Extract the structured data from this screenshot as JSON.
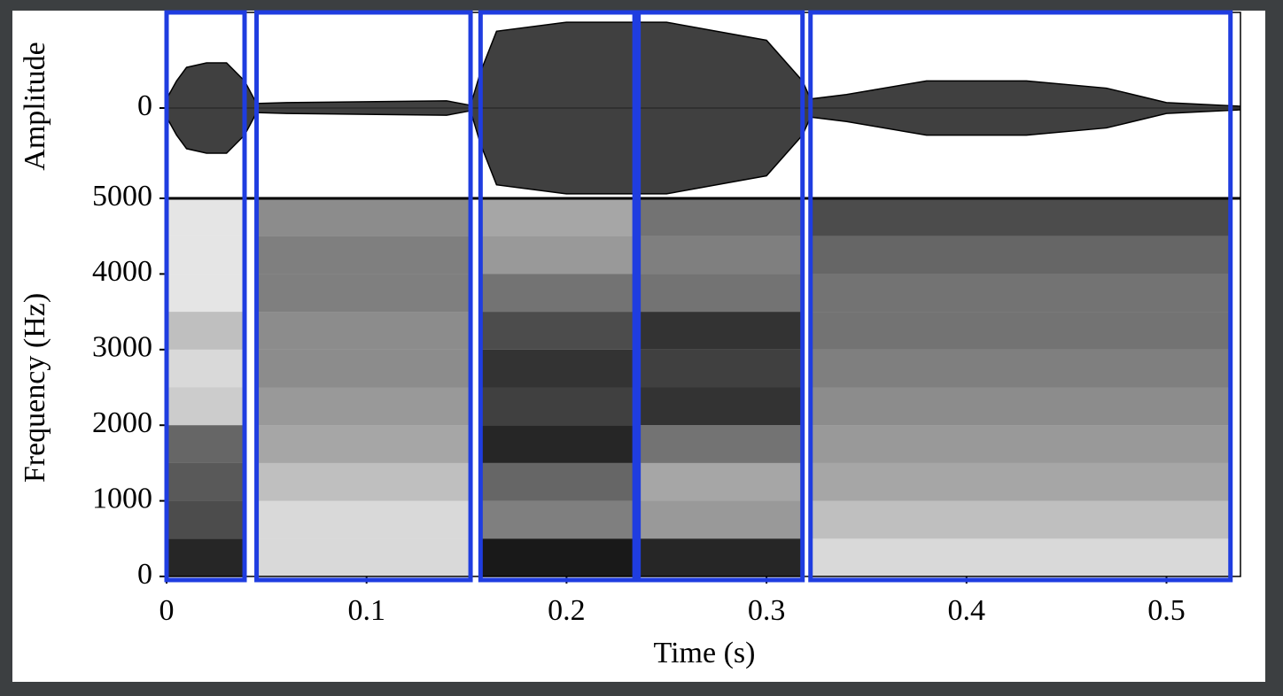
{
  "chart_data": [
    {
      "type": "envelope",
      "ylabel": "Amplitude",
      "color": "#000000",
      "xlim": [
        0,
        0.537
      ],
      "ylim": [
        -1,
        1
      ],
      "yticks": [
        0
      ],
      "x": [
        0,
        0.005,
        0.01,
        0.02,
        0.03,
        0.039,
        0.045,
        0.06,
        0.1,
        0.14,
        0.152,
        0.157,
        0.165,
        0.2,
        0.25,
        0.3,
        0.31,
        0.318,
        0.322,
        0.34,
        0.38,
        0.43,
        0.47,
        0.5,
        0.537
      ],
      "values": [
        0.1,
        0.3,
        0.45,
        0.5,
        0.5,
        0.3,
        0.05,
        0.06,
        0.07,
        0.08,
        0.03,
        0.4,
        0.85,
        0.95,
        0.95,
        0.75,
        0.5,
        0.3,
        0.1,
        0.15,
        0.3,
        0.3,
        0.22,
        0.06,
        0.02
      ]
    },
    {
      "type": "heatmap",
      "ylabel": "Frequency (Hz)",
      "xlabel": "Time (s)",
      "color": "#000000",
      "segment_color": "#1f3de0",
      "xlim": [
        0,
        0.537
      ],
      "xticks": [
        0,
        0.1,
        0.2,
        0.3,
        0.4,
        0.5
      ],
      "ylim": [
        0,
        5000
      ],
      "yticks": [
        0,
        1000,
        2000,
        3000,
        4000,
        5000
      ],
      "freq_bins": [
        0,
        500,
        1000,
        1500,
        2000,
        2500,
        3000,
        3500,
        4000,
        4500,
        5000
      ],
      "segments": [
        {
          "start": 0,
          "end": 0.039,
          "intensity": [
            0.85,
            0.7,
            0.65,
            0.6,
            0.2,
            0.15,
            0.25,
            0.1,
            0.1,
            0.1
          ]
        },
        {
          "start": 0.045,
          "end": 0.152,
          "intensity": [
            0.15,
            0.15,
            0.25,
            0.35,
            0.4,
            0.45,
            0.45,
            0.5,
            0.5,
            0.45
          ]
        },
        {
          "start": 0.157,
          "end": 0.234,
          "intensity": [
            0.9,
            0.5,
            0.6,
            0.85,
            0.75,
            0.8,
            0.7,
            0.55,
            0.4,
            0.35
          ]
        },
        {
          "start": 0.236,
          "end": 0.318,
          "intensity": [
            0.85,
            0.4,
            0.35,
            0.55,
            0.8,
            0.75,
            0.8,
            0.55,
            0.5,
            0.55
          ]
        },
        {
          "start": 0.322,
          "end": 0.532,
          "intensity": [
            0.15,
            0.25,
            0.35,
            0.4,
            0.45,
            0.5,
            0.55,
            0.55,
            0.6,
            0.7
          ]
        }
      ]
    }
  ]
}
